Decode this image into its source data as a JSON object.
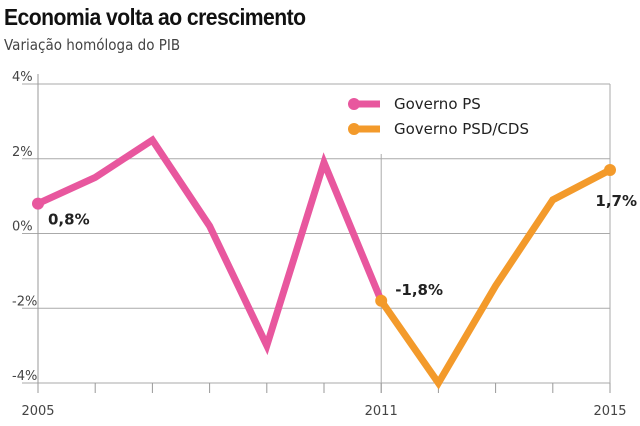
{
  "chart_data": {
    "type": "line",
    "title": "Economia volta ao crescimento",
    "subtitle": "Variação homóloga do PIB",
    "xlabel": "",
    "ylabel": "",
    "ylim": [
      -4,
      4
    ],
    "xlim": [
      2005,
      2015
    ],
    "y_ticks": [
      "4%",
      "2%",
      "0%",
      "-2%",
      "-4%"
    ],
    "y_tick_values": [
      4,
      2,
      0,
      -2,
      -4
    ],
    "x_tick_labels": [
      "2005",
      "2011",
      "2015"
    ],
    "x_tick_values": [
      2005,
      2011,
      2015
    ],
    "grid": true,
    "legend_position": "top-right",
    "series": [
      {
        "name": "Governo PS",
        "color": "#e8579e",
        "x": [
          2005,
          2006,
          2007,
          2008,
          2009,
          2010,
          2011
        ],
        "y": [
          0.8,
          1.5,
          2.5,
          0.2,
          -3.0,
          1.9,
          -1.8
        ]
      },
      {
        "name": "Governo PSD/CDS",
        "color": "#f39a2b",
        "x": [
          2011,
          2012,
          2013,
          2014,
          2015
        ],
        "y": [
          -1.8,
          -4.0,
          -1.4,
          0.9,
          1.7
        ]
      }
    ],
    "annotations": [
      {
        "x": 2005,
        "y": 0.8,
        "text": "0,8%"
      },
      {
        "x": 2011,
        "y": -1.8,
        "text": "-1,8%"
      },
      {
        "x": 2015,
        "y": 1.7,
        "text": "1,7%"
      }
    ]
  }
}
